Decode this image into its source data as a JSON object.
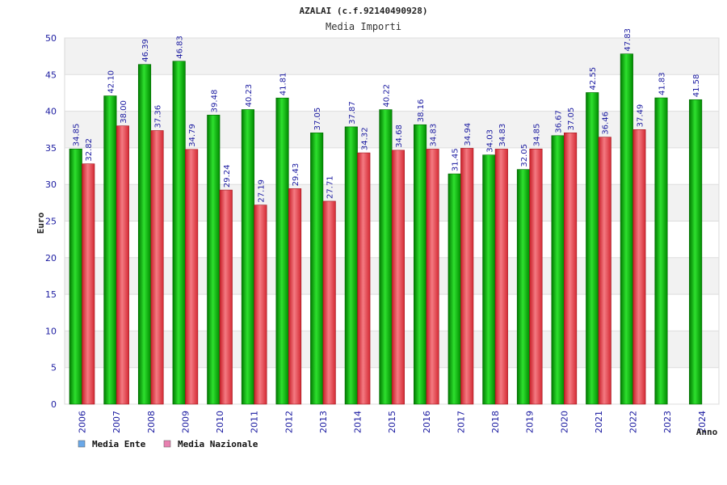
{
  "chart_data": {
    "type": "bar",
    "title": "AZALAI (c.f.92140490928)",
    "subtitle": "Media Importi",
    "xlabel": "Anno",
    "ylabel": "Euro",
    "ylim": [
      0,
      50
    ],
    "yticks": [
      0,
      5,
      10,
      15,
      20,
      25,
      30,
      35,
      40,
      45,
      50
    ],
    "grid": true,
    "legend_position": "bottom-left",
    "categories": [
      "2006",
      "2007",
      "2008",
      "2009",
      "2010",
      "2011",
      "2012",
      "2013",
      "2014",
      "2015",
      "2016",
      "2017",
      "2018",
      "2019",
      "2020",
      "2021",
      "2022",
      "2023",
      "2024"
    ],
    "series": [
      {
        "name": "Media Ente",
        "color": "#00b000",
        "legend_color": "#6aa8e8",
        "values": [
          34.85,
          42.1,
          46.39,
          46.83,
          39.48,
          40.23,
          41.81,
          37.05,
          37.87,
          40.22,
          38.16,
          31.45,
          34.03,
          32.05,
          36.67,
          42.55,
          47.83,
          41.83,
          41.58
        ],
        "labels": [
          "34.85",
          "42.10",
          "46.39",
          "46.83",
          "39.48",
          "40.23",
          "41.81",
          "37.05",
          "37.87",
          "40.22",
          "38.16",
          "31.45",
          "34.03",
          "32.05",
          "36.67",
          "42.55",
          "47.83",
          "41.83",
          "41.58"
        ]
      },
      {
        "name": "Media Nazionale",
        "color": "#e8303c",
        "legend_color": "#e880b0",
        "values": [
          32.82,
          38.0,
          37.36,
          34.79,
          29.24,
          27.19,
          29.43,
          27.71,
          34.32,
          34.68,
          34.83,
          34.94,
          34.83,
          34.85,
          37.05,
          36.46,
          37.49,
          null,
          null
        ],
        "labels": [
          "32.82",
          "38.00",
          "37.36",
          "34.79",
          "29.24",
          "27.19",
          "29.43",
          "27.71",
          "34.32",
          "34.68",
          "34.83",
          "34.94",
          "34.83",
          "34.85",
          "37.05",
          "36.46",
          "37.49",
          null,
          null
        ]
      }
    ]
  }
}
